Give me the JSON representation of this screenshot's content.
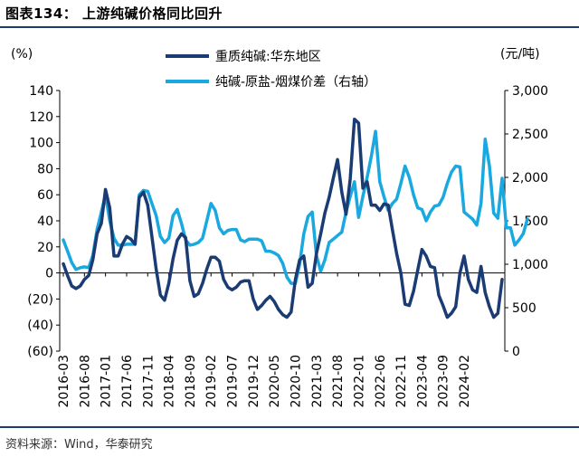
{
  "figure": {
    "title": "图表134： 上游纯碱价格同比回升",
    "source": "资料来源：Wind，华泰研究"
  },
  "chart_data": {
    "type": "line",
    "left_axis": {
      "unit_label": "(%)",
      "ylim": [
        -60,
        140
      ],
      "ticks": [
        "140",
        "120",
        "100",
        "80",
        "60",
        "40",
        "20",
        "0",
        "(20)",
        "(40)",
        "(60)"
      ]
    },
    "right_axis": {
      "unit_label": "(元/吨)",
      "ylim": [
        0,
        3000
      ],
      "ticks": [
        "3,000",
        "2,500",
        "2,000",
        "1,500",
        "1,000",
        "500",
        "0"
      ]
    },
    "x_tick_labels": [
      "2016-03",
      "2016-08",
      "2017-01",
      "2017-06",
      "2017-11",
      "2018-04",
      "2018-09",
      "2019-02",
      "2019-07",
      "2019-12",
      "2020-05",
      "2020-10",
      "2021-03",
      "2021-08",
      "2022-01",
      "2022-06",
      "2022-11",
      "2023-04",
      "2023-09",
      "2024-02"
    ],
    "x_start": "2016-03",
    "legend_placement": "top",
    "series": [
      {
        "name": "重质纯碱:华东地区",
        "axis": "left",
        "color": "#1a3b73",
        "values": [
          7,
          -2,
          -10,
          -12,
          -10,
          -5,
          -2,
          10,
          30,
          38,
          64,
          50,
          13,
          13,
          22,
          28,
          26,
          22,
          58,
          62,
          52,
          28,
          3,
          -17,
          -21,
          -8,
          11,
          25,
          30,
          27,
          -6,
          -18,
          -16,
          -8,
          3,
          12,
          12,
          9,
          -5,
          -11,
          -13,
          -11,
          -7,
          -6,
          -6,
          -20,
          -28,
          -25,
          -21,
          -18,
          -22,
          -28,
          -32,
          -34,
          -30,
          -5,
          10,
          13,
          -11,
          -8,
          15,
          30,
          46,
          58,
          73,
          87,
          62,
          45,
          72,
          118,
          115,
          65,
          70,
          52,
          52,
          48,
          53,
          52,
          33,
          15,
          0,
          -24,
          -25,
          -14,
          2,
          18,
          13,
          5,
          4,
          -17,
          -25,
          -34,
          -31,
          -26,
          0,
          13,
          -5,
          -13,
          -15,
          5,
          -15,
          -26,
          -34,
          -31,
          -5
        ]
      },
      {
        "name": "纯碱-原盐-烟煤价差（右轴）",
        "axis": "right",
        "color": "#1aa8e0",
        "values": [
          1280,
          1150,
          1020,
          940,
          960,
          970,
          960,
          1100,
          1400,
          1600,
          1800,
          1500,
          1300,
          1220,
          1220,
          1230,
          1230,
          1230,
          1800,
          1850,
          1840,
          1700,
          1560,
          1320,
          1250,
          1300,
          1560,
          1630,
          1470,
          1280,
          1220,
          1230,
          1250,
          1300,
          1500,
          1700,
          1620,
          1420,
          1350,
          1390,
          1400,
          1400,
          1280,
          1260,
          1290,
          1290,
          1290,
          1270,
          1150,
          1150,
          1130,
          1100,
          1010,
          850,
          780,
          780,
          1000,
          1350,
          1550,
          1600,
          1100,
          920,
          1050,
          1250,
          1290,
          1330,
          1370,
          1600,
          1780,
          1950,
          1540,
          1780,
          2000,
          2240,
          2530,
          1950,
          1780,
          1620,
          1700,
          1750,
          1930,
          2130,
          2000,
          1800,
          1650,
          1630,
          1500,
          1600,
          1670,
          1680,
          1770,
          1930,
          2060,
          2130,
          2120,
          1600,
          1560,
          1520,
          1450,
          1700,
          2440,
          2130,
          1590,
          1530,
          1990,
          1420,
          1420,
          1220,
          1280,
          1350,
          1520
        ]
      }
    ]
  }
}
